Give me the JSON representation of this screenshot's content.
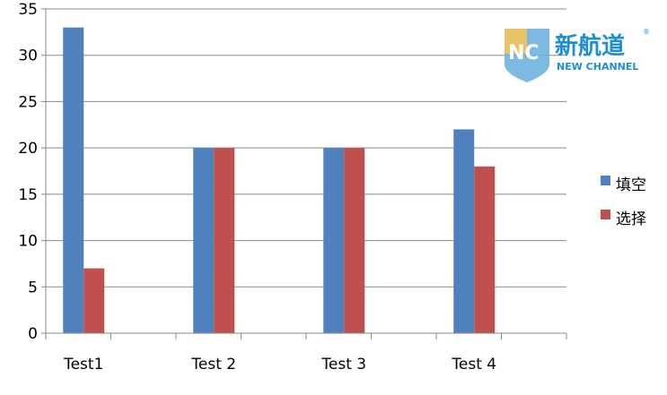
{
  "chart_data": {
    "type": "bar",
    "categories": [
      "Test1",
      "Test 2",
      "Test 3",
      "Test 4"
    ],
    "series": [
      {
        "name": "填空",
        "values": [
          33,
          20,
          20,
          22
        ],
        "color": "#4f81bd"
      },
      {
        "name": "选择",
        "values": [
          7,
          20,
          20,
          18
        ],
        "color": "#c0504d"
      }
    ],
    "ylim": [
      0,
      35
    ],
    "yticks": [
      0,
      5,
      10,
      15,
      20,
      25,
      30,
      35
    ],
    "grid": true,
    "legend": "right",
    "title": "",
    "xlabel": "",
    "ylabel": ""
  },
  "logo": {
    "mark": "NC",
    "name_cn": "新航道",
    "name_en": "NEW CHANNEL",
    "registered": "®"
  }
}
